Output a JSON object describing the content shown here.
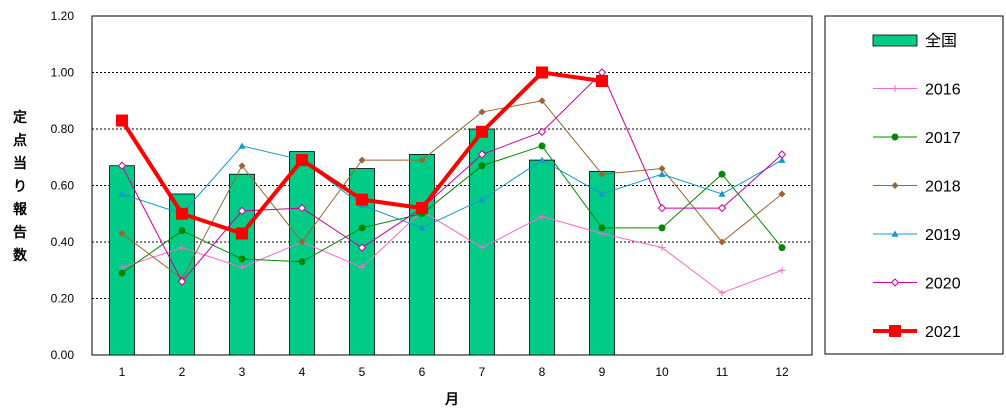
{
  "chart_data": {
    "type": "bar",
    "xlabel": "月",
    "ylabel": "定点当り報告数",
    "ylim": [
      0,
      1.2
    ],
    "yticks": [
      "0.00",
      "0.20",
      "0.40",
      "0.60",
      "0.80",
      "1.00",
      "1.20"
    ],
    "categories": [
      "1",
      "2",
      "3",
      "4",
      "5",
      "6",
      "7",
      "8",
      "9",
      "10",
      "11",
      "12"
    ],
    "grid": "horizontal dashed",
    "legend_position": "right",
    "bar_series": {
      "name": "全国",
      "color": "#00cc88",
      "values": [
        0.67,
        0.57,
        0.64,
        0.72,
        0.66,
        0.71,
        0.8,
        0.69,
        0.65,
        null,
        null,
        null
      ]
    },
    "series": [
      {
        "name": "2016",
        "color": "#ff66cc",
        "marker": "plus",
        "values": [
          0.31,
          0.38,
          0.31,
          0.4,
          0.31,
          0.51,
          0.38,
          0.49,
          0.43,
          0.38,
          0.22,
          0.3
        ]
      },
      {
        "name": "2017",
        "color": "#008800",
        "marker": "circle",
        "values": [
          0.29,
          0.44,
          0.34,
          0.33,
          0.45,
          0.5,
          0.67,
          0.74,
          0.45,
          0.45,
          0.64,
          0.38
        ]
      },
      {
        "name": "2018",
        "color": "#996633",
        "marker": "diamond",
        "values": [
          0.43,
          0.27,
          0.67,
          0.4,
          0.69,
          0.69,
          0.86,
          0.9,
          0.64,
          0.66,
          0.4,
          0.57
        ]
      },
      {
        "name": "2019",
        "color": "#1199cc",
        "marker": "triangle",
        "values": [
          0.57,
          0.5,
          0.74,
          0.69,
          0.53,
          0.45,
          0.55,
          0.69,
          0.57,
          0.64,
          0.57,
          0.69
        ]
      },
      {
        "name": "2020",
        "color": "#cc0099",
        "marker": "open-diamond",
        "values": [
          0.67,
          0.26,
          0.51,
          0.52,
          0.38,
          0.52,
          0.71,
          0.79,
          1.0,
          0.52,
          0.52,
          0.71
        ]
      },
      {
        "name": "2021",
        "color": "#ff0000",
        "marker": "square",
        "bold": true,
        "values": [
          0.83,
          0.5,
          0.43,
          0.69,
          0.55,
          0.52,
          0.79,
          1.0,
          0.97,
          null,
          null,
          null
        ]
      }
    ]
  }
}
